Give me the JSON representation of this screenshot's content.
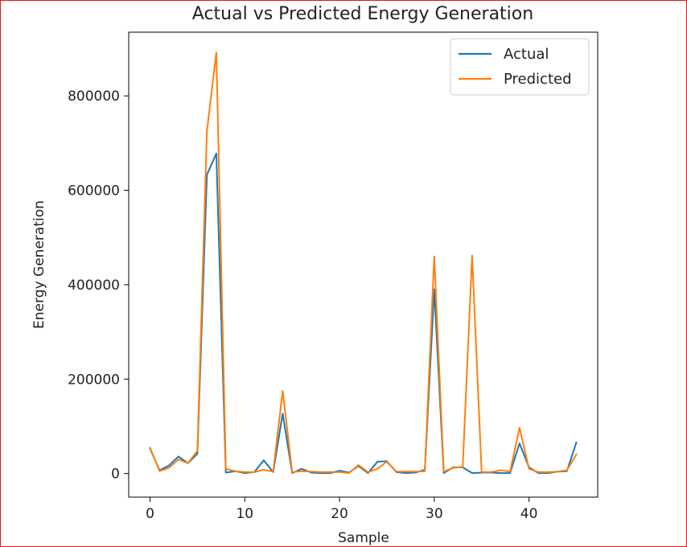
{
  "chart_data": {
    "type": "line",
    "title": "Actual vs Predicted Energy Generation",
    "xlabel": "Sample",
    "ylabel": "Energy Generation",
    "xlim": [
      -2.25,
      47.25
    ],
    "ylim": [
      -50000,
      935000
    ],
    "xticks": [
      0,
      10,
      20,
      30,
      40
    ],
    "yticks": [
      0,
      200000,
      400000,
      600000,
      800000
    ],
    "grid": false,
    "legend": "top-right",
    "x": [
      0,
      1,
      2,
      3,
      4,
      5,
      6,
      7,
      8,
      9,
      10,
      11,
      12,
      13,
      14,
      15,
      16,
      17,
      18,
      19,
      20,
      21,
      22,
      23,
      24,
      25,
      26,
      27,
      28,
      29,
      30,
      31,
      32,
      33,
      34,
      35,
      36,
      37,
      38,
      39,
      40,
      41,
      42,
      43,
      44,
      45
    ],
    "series": [
      {
        "name": "Actual",
        "color": "#1f77b4",
        "values": [
          53000,
          7000,
          17000,
          36000,
          22000,
          42000,
          633000,
          678000,
          2000,
          5000,
          1000,
          3000,
          28000,
          3000,
          127000,
          1000,
          10000,
          2000,
          1000,
          1000,
          6000,
          2000,
          16000,
          1000,
          25000,
          26000,
          3000,
          1000,
          2000,
          8000,
          390000,
          1000,
          13000,
          13000,
          1000,
          2000,
          2000,
          1000,
          1000,
          64000,
          13000,
          1000,
          1000,
          4000,
          5000,
          66000
        ]
      },
      {
        "name": "Predicted",
        "color": "#ff7f0e",
        "values": [
          55000,
          5000,
          12000,
          30000,
          22000,
          48000,
          725000,
          892000,
          10000,
          5000,
          3000,
          3000,
          8000,
          4000,
          175000,
          3000,
          5000,
          4000,
          3000,
          3000,
          3000,
          1000,
          18000,
          3000,
          10000,
          25000,
          4000,
          4000,
          4000,
          5000,
          460000,
          4000,
          12000,
          14000,
          462000,
          3000,
          3000,
          7000,
          4000,
          97000,
          10000,
          3000,
          3000,
          4000,
          7000,
          41000
        ]
      }
    ]
  }
}
